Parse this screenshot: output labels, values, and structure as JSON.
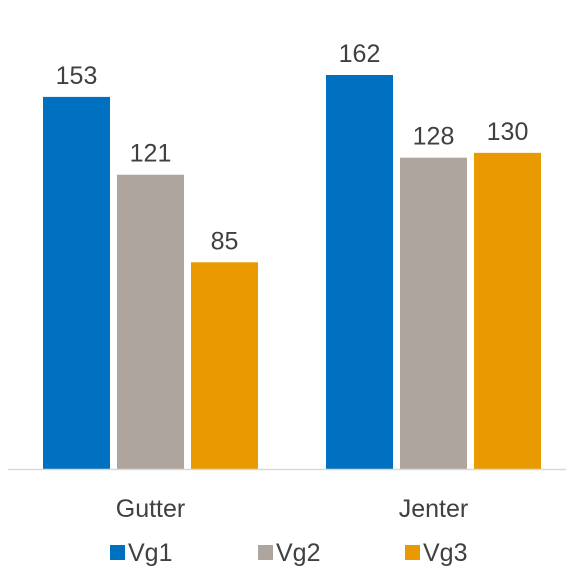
{
  "chart_data": {
    "type": "bar",
    "categories": [
      "Gutter",
      "Jenter"
    ],
    "series": [
      {
        "name": "Vg1",
        "values": [
          153,
          162
        ],
        "color": "#0070c0"
      },
      {
        "name": "Vg2",
        "values": [
          121,
          128
        ],
        "color": "#aea59e"
      },
      {
        "name": "Vg3",
        "values": [
          85,
          130
        ],
        "color": "#e89a00"
      }
    ],
    "title": "",
    "xlabel": "",
    "ylabel": "",
    "ylim": [
      0,
      190
    ],
    "grid": false,
    "legend": "bottom",
    "data_labels": true
  },
  "colors": {
    "axis": "#d9d9d9",
    "text": "#404040"
  }
}
